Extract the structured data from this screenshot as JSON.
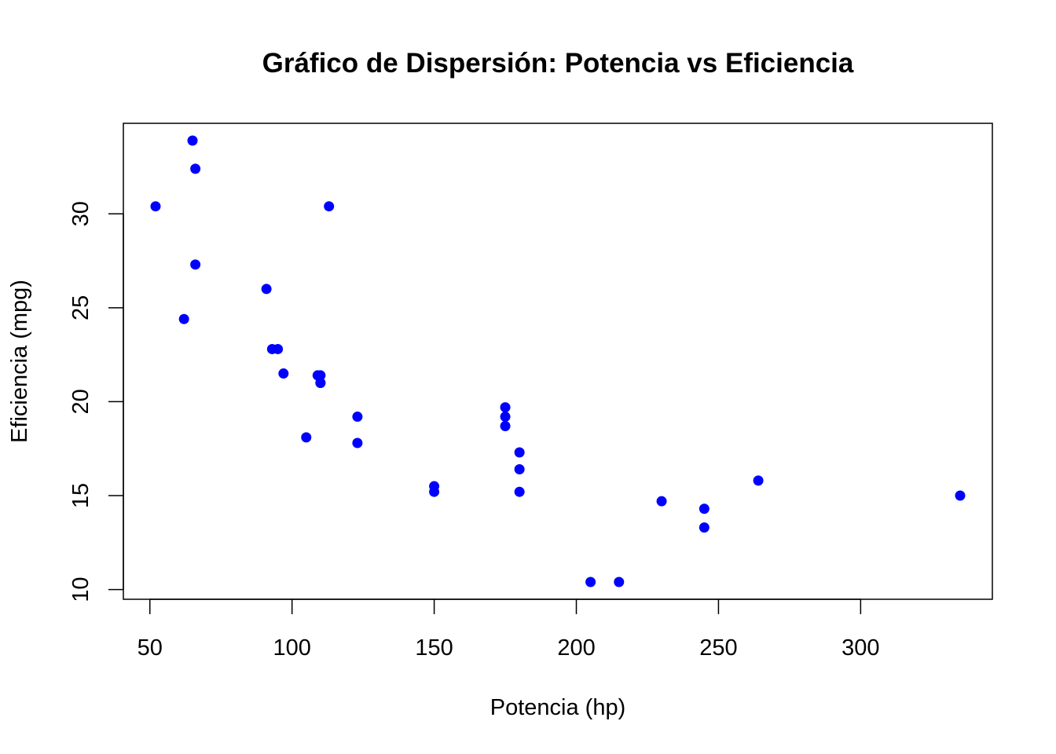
{
  "chart_data": {
    "type": "scatter",
    "title": "Gráfico de Dispersión: Potencia vs Eficiencia",
    "xlabel": "Potencia (hp)",
    "ylabel": "Eficiencia (mpg)",
    "xlim": [
      52,
      335
    ],
    "ylim": [
      10.4,
      33.9
    ],
    "x_ticks": [
      50,
      100,
      150,
      200,
      250,
      300
    ],
    "y_ticks": [
      10,
      15,
      20,
      25,
      30
    ],
    "grid": false,
    "point_color": "#0000FF",
    "axis_color": "#000000",
    "series": [
      {
        "name": "Potencia vs Eficiencia",
        "x": [
          110,
          110,
          93,
          110,
          175,
          105,
          245,
          62,
          95,
          123,
          123,
          180,
          180,
          180,
          205,
          215,
          230,
          66,
          52,
          65,
          97,
          150,
          150,
          245,
          175,
          66,
          91,
          113,
          264,
          175,
          335,
          109
        ],
        "y": [
          21.0,
          21.0,
          22.8,
          21.4,
          18.7,
          18.1,
          14.3,
          24.4,
          22.8,
          19.2,
          17.8,
          16.4,
          17.3,
          15.2,
          10.4,
          10.4,
          14.7,
          32.4,
          30.4,
          33.9,
          21.5,
          15.5,
          15.2,
          13.3,
          19.2,
          27.3,
          26.0,
          30.4,
          15.8,
          19.7,
          15.0,
          21.4
        ]
      }
    ]
  }
}
